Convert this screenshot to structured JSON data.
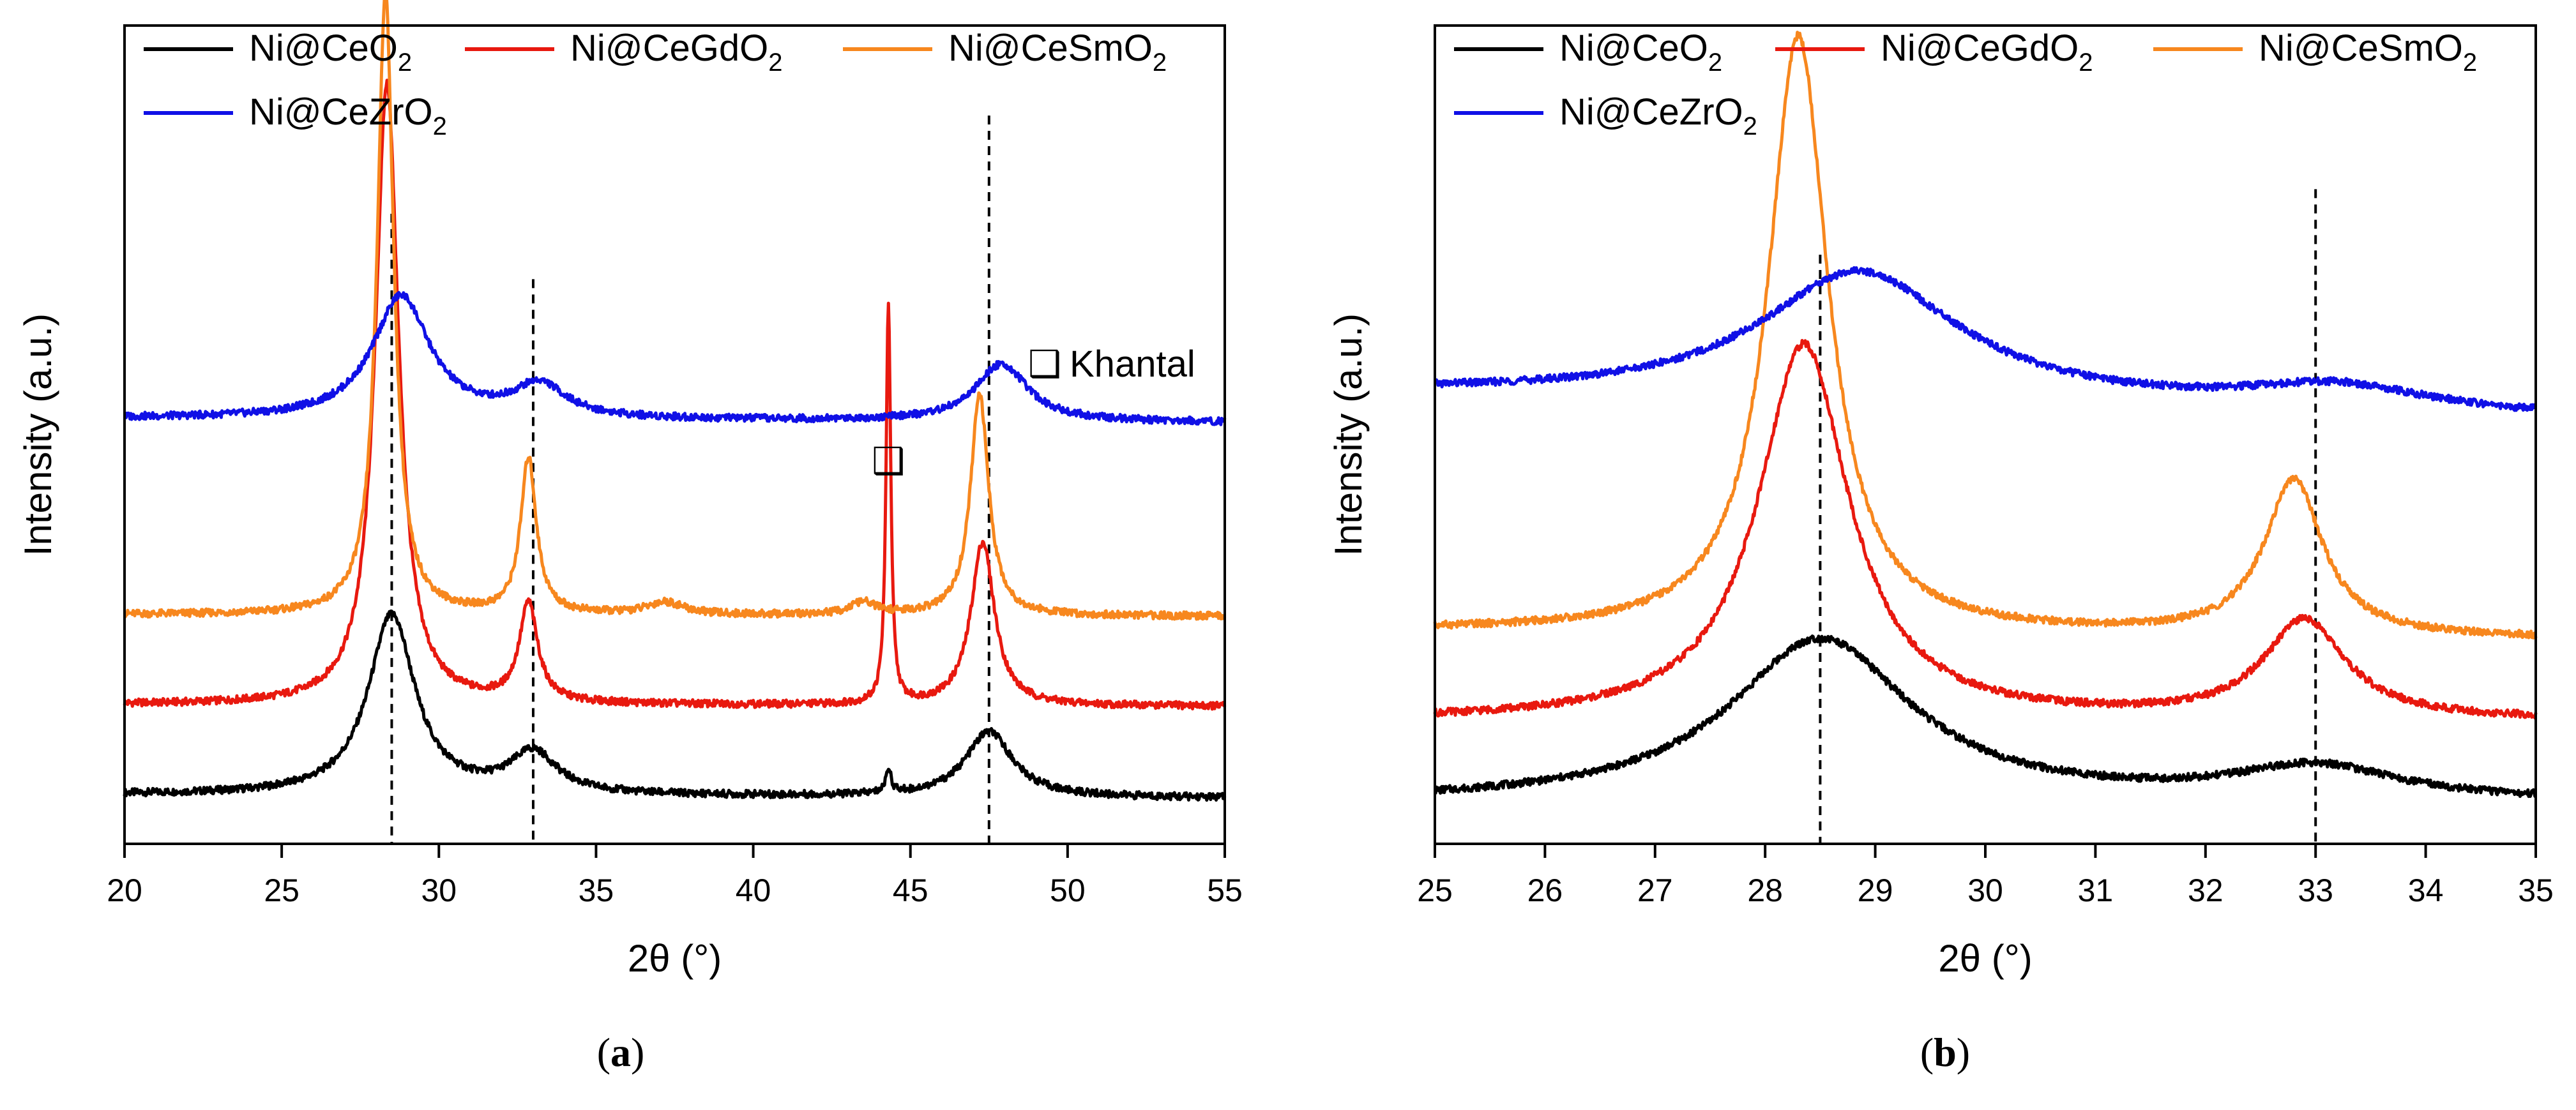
{
  "chart_data": [
    {
      "type": "line",
      "panel": "a",
      "caption_open": "(",
      "caption_letter": "a",
      "caption_close": ")",
      "xlabel": "2θ (°)",
      "ylabel": "Intensity (a.u.)",
      "xlim": [
        20,
        55
      ],
      "ylim": [
        0,
        100
      ],
      "xticks": [
        20,
        25,
        30,
        35,
        40,
        45,
        50,
        55
      ],
      "reference_lines": [
        28.5,
        33.0,
        47.5
      ],
      "annotation": {
        "symbol": "❑",
        "label": "Khantal",
        "peak_x": 44.3
      },
      "series": [
        {
          "name": "Ni@CeO",
          "subscript": "2",
          "color": "#000000",
          "baseline": 6,
          "slope": 0.04,
          "peaks": [
            {
              "x": 28.5,
              "h": 22,
              "w": 0.9
            },
            {
              "x": 33.0,
              "h": 5,
              "w": 0.9
            },
            {
              "x": 47.5,
              "h": 8,
              "w": 0.9
            },
            {
              "x": 44.3,
              "h": 3,
              "w": 0.1
            }
          ]
        },
        {
          "name": "Ni@CeGdO",
          "subscript": "2",
          "color": "#e8190f",
          "baseline": 17,
          "slope": 0.02,
          "peaks": [
            {
              "x": 28.35,
              "h": 76,
              "w": 0.45
            },
            {
              "x": 32.85,
              "h": 12,
              "w": 0.35
            },
            {
              "x": 47.3,
              "h": 20,
              "w": 0.45
            },
            {
              "x": 44.3,
              "h": 49,
              "w": 0.09
            }
          ]
        },
        {
          "name": "Ni@CeSmO",
          "subscript": "2",
          "color": "#f7871e",
          "baseline": 28,
          "slope": 0.02,
          "peaks": [
            {
              "x": 28.3,
              "h": 76,
              "w": 0.32
            },
            {
              "x": 32.85,
              "h": 19,
              "w": 0.3
            },
            {
              "x": 47.2,
              "h": 27,
              "w": 0.35
            },
            {
              "x": 37.2,
              "h": 1.5,
              "w": 0.7
            },
            {
              "x": 43.5,
              "h": 1.5,
              "w": 0.5
            }
          ]
        },
        {
          "name": "Ni@CeZrO",
          "subscript": "2",
          "color": "#1010e6",
          "baseline": 52,
          "slope": 0.05,
          "peaks": [
            {
              "x": 28.8,
              "h": 15,
              "w": 1.1
            },
            {
              "x": 33.2,
              "h": 4,
              "w": 1.0
            },
            {
              "x": 47.9,
              "h": 7,
              "w": 1.0
            }
          ]
        }
      ]
    },
    {
      "type": "line",
      "panel": "b",
      "caption_open": "(",
      "caption_letter": "b",
      "caption_close": ")",
      "xlabel": "2θ (°)",
      "ylabel": "Intensity (a.u.)",
      "xlim": [
        25,
        35
      ],
      "ylim": [
        0,
        100
      ],
      "xticks": [
        25,
        26,
        27,
        28,
        29,
        30,
        31,
        32,
        33,
        34,
        35
      ],
      "reference_lines": [
        28.5,
        33.0
      ],
      "series": [
        {
          "name": "Ni@CeO",
          "subscript": "2",
          "color": "#000000",
          "baseline": 5,
          "slope": 0.0,
          "peaks": [
            {
              "x": 28.5,
              "h": 20,
              "w": 1.0
            },
            {
              "x": 33.0,
              "h": 4,
              "w": 0.9
            }
          ]
        },
        {
          "name": "Ni@CeGdO",
          "subscript": "2",
          "color": "#e8190f",
          "baseline": 15,
          "slope": 0.0,
          "peaks": [
            {
              "x": 28.35,
              "h": 46,
              "w": 0.5
            },
            {
              "x": 32.9,
              "h": 12,
              "w": 0.45
            }
          ]
        },
        {
          "name": "Ni@CeSmO",
          "subscript": "2",
          "color": "#f7871e",
          "baseline": 26,
          "slope": -0.1,
          "peaks": [
            {
              "x": 28.3,
              "h": 73,
              "w": 0.33
            },
            {
              "x": 32.8,
              "h": 19,
              "w": 0.32
            }
          ]
        },
        {
          "name": "Ni@CeZrO",
          "subscript": "2",
          "color": "#1010e6",
          "baseline": 55,
          "slope": -0.3,
          "peaks": [
            {
              "x": 28.85,
              "h": 16,
              "w": 1.1
            },
            {
              "x": 33.2,
              "h": 3,
              "w": 1.0
            }
          ]
        }
      ]
    }
  ]
}
